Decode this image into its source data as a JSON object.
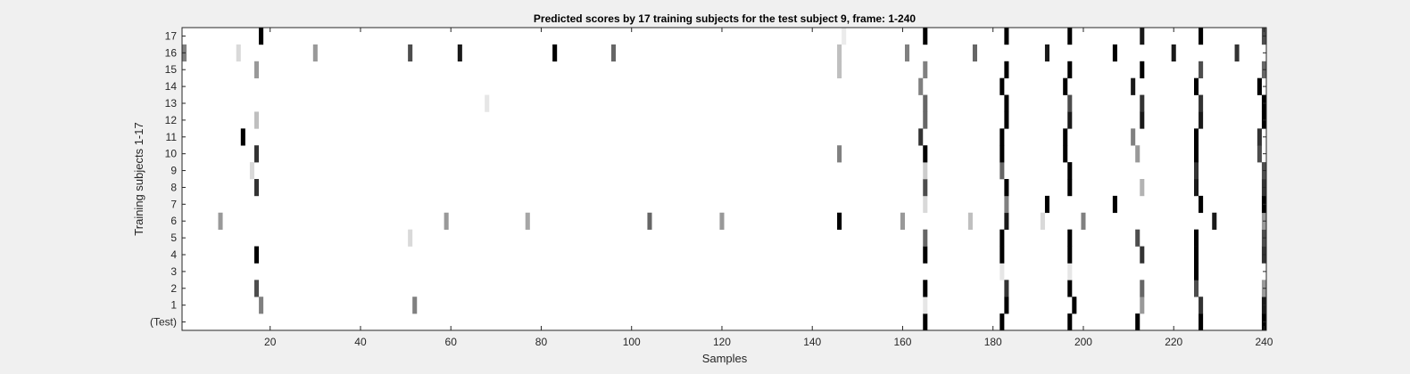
{
  "chart_data": {
    "type": "heatmap",
    "title": "Predicted scores by 17 training subjects for the test subject 9, frame: 1-240",
    "xlabel": "Samples",
    "ylabel": "Training subjects 1-17",
    "xlim": [
      1,
      240
    ],
    "x_ticks": [
      20,
      40,
      60,
      80,
      100,
      120,
      140,
      160,
      180,
      200,
      220,
      240
    ],
    "rows": [
      "(Test)",
      "1",
      "2",
      "3",
      "4",
      "5",
      "6",
      "7",
      "8",
      "9",
      "10",
      "11",
      "12",
      "13",
      "14",
      "15",
      "16",
      "17"
    ],
    "value_range": [
      0,
      1
    ],
    "colormap": "white-to-black (gray)",
    "cells": [
      {
        "row": "(Test)",
        "marks": [
          [
            165,
            1.0
          ],
          [
            182,
            1.0
          ],
          [
            197,
            1.0
          ],
          [
            212,
            1.0
          ],
          [
            226,
            1.0
          ],
          [
            240,
            1.0
          ]
        ]
      },
      {
        "row": "1",
        "marks": [
          [
            18,
            0.5
          ],
          [
            52,
            0.5
          ],
          [
            165,
            0.1
          ],
          [
            183,
            1.0
          ],
          [
            198,
            1.0
          ],
          [
            213,
            0.4
          ],
          [
            226,
            0.8
          ],
          [
            240,
            0.9
          ]
        ]
      },
      {
        "row": "2",
        "marks": [
          [
            17,
            0.7
          ],
          [
            165,
            1.0
          ],
          [
            183,
            0.8
          ],
          [
            197,
            1.0
          ],
          [
            213,
            0.6
          ],
          [
            225,
            0.7
          ],
          [
            240,
            0.4
          ]
        ]
      },
      {
        "row": "3",
        "marks": [
          [
            182,
            0.1
          ],
          [
            197,
            0.1
          ],
          [
            225,
            1.0
          ]
        ]
      },
      {
        "row": "4",
        "marks": [
          [
            17,
            1.0
          ],
          [
            165,
            1.0
          ],
          [
            182,
            1.0
          ],
          [
            197,
            1.0
          ],
          [
            213,
            0.8
          ],
          [
            225,
            1.0
          ],
          [
            240,
            0.8
          ]
        ]
      },
      {
        "row": "5",
        "marks": [
          [
            51,
            0.15
          ],
          [
            165,
            0.6
          ],
          [
            182,
            1.0
          ],
          [
            197,
            1.0
          ],
          [
            212,
            0.7
          ],
          [
            225,
            1.0
          ],
          [
            240,
            0.7
          ]
        ]
      },
      {
        "row": "6",
        "marks": [
          [
            9,
            0.4
          ],
          [
            59,
            0.4
          ],
          [
            77,
            0.35
          ],
          [
            104,
            0.6
          ],
          [
            120,
            0.4
          ],
          [
            146,
            1.0
          ],
          [
            160,
            0.4
          ],
          [
            175,
            0.25
          ],
          [
            183,
            0.9
          ],
          [
            191,
            0.15
          ],
          [
            200,
            0.5
          ],
          [
            229,
            0.9
          ],
          [
            240,
            0.4
          ]
        ]
      },
      {
        "row": "7",
        "marks": [
          [
            165,
            0.15
          ],
          [
            183,
            0.5
          ],
          [
            192,
            1.0
          ],
          [
            207,
            1.0
          ],
          [
            226,
            1.0
          ],
          [
            240,
            1.0
          ]
        ]
      },
      {
        "row": "8",
        "marks": [
          [
            17,
            0.8
          ],
          [
            165,
            0.7
          ],
          [
            183,
            1.0
          ],
          [
            197,
            1.0
          ],
          [
            213,
            0.3
          ],
          [
            225,
            0.9
          ],
          [
            240,
            0.8
          ]
        ]
      },
      {
        "row": "9",
        "marks": [
          [
            16,
            0.15
          ],
          [
            165,
            0.2
          ],
          [
            182,
            0.6
          ],
          [
            197,
            1.0
          ],
          [
            225,
            0.8
          ],
          [
            240,
            0.7
          ]
        ]
      },
      {
        "row": "10",
        "marks": [
          [
            17,
            0.8
          ],
          [
            146,
            0.5
          ],
          [
            165,
            1.0
          ],
          [
            182,
            1.0
          ],
          [
            196,
            1.0
          ],
          [
            212,
            0.4
          ],
          [
            225,
            1.0
          ],
          [
            239,
            0.7
          ]
        ]
      },
      {
        "row": "11",
        "marks": [
          [
            14,
            1.0
          ],
          [
            164,
            0.8
          ],
          [
            182,
            1.0
          ],
          [
            196,
            1.0
          ],
          [
            211,
            0.5
          ],
          [
            225,
            1.0
          ],
          [
            239,
            0.8
          ]
        ]
      },
      {
        "row": "12",
        "marks": [
          [
            17,
            0.25
          ],
          [
            165,
            0.6
          ],
          [
            183,
            1.0
          ],
          [
            197,
            0.9
          ],
          [
            213,
            0.9
          ],
          [
            226,
            0.9
          ],
          [
            240,
            1.0
          ]
        ]
      },
      {
        "row": "13",
        "marks": [
          [
            68,
            0.1
          ],
          [
            165,
            0.6
          ],
          [
            183,
            1.0
          ],
          [
            197,
            0.7
          ],
          [
            213,
            0.8
          ],
          [
            226,
            0.8
          ],
          [
            240,
            1.0
          ]
        ]
      },
      {
        "row": "14",
        "marks": [
          [
            164,
            0.5
          ],
          [
            182,
            1.0
          ],
          [
            196,
            1.0
          ],
          [
            211,
            0.9
          ],
          [
            225,
            1.0
          ],
          [
            239,
            1.0
          ]
        ]
      },
      {
        "row": "15",
        "marks": [
          [
            17,
            0.4
          ],
          [
            146,
            0.25
          ],
          [
            165,
            0.5
          ],
          [
            183,
            1.0
          ],
          [
            197,
            1.0
          ],
          [
            213,
            1.0
          ],
          [
            226,
            0.7
          ],
          [
            240,
            0.6
          ]
        ]
      },
      {
        "row": "16",
        "marks": [
          [
            1,
            0.5
          ],
          [
            13,
            0.15
          ],
          [
            30,
            0.4
          ],
          [
            51,
            0.7
          ],
          [
            62,
            0.9
          ],
          [
            83,
            1.0
          ],
          [
            96,
            0.6
          ],
          [
            146,
            0.25
          ],
          [
            161,
            0.5
          ],
          [
            176,
            0.6
          ],
          [
            192,
            0.9
          ],
          [
            207,
            1.0
          ],
          [
            220,
            0.9
          ],
          [
            234,
            0.8
          ]
        ]
      },
      {
        "row": "17",
        "marks": [
          [
            18,
            1.0
          ],
          [
            147,
            0.08
          ],
          [
            165,
            1.0
          ],
          [
            183,
            1.0
          ],
          [
            197,
            1.0
          ],
          [
            213,
            0.9
          ],
          [
            226,
            1.0
          ],
          [
            240,
            0.7
          ]
        ]
      }
    ]
  }
}
